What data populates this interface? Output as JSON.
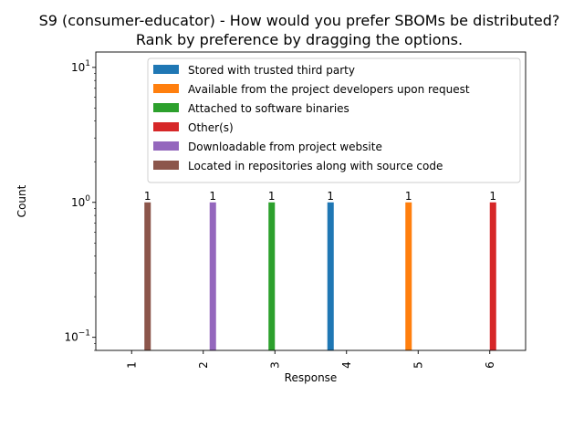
{
  "chart_data": {
    "type": "bar",
    "title": "S9 (consumer-educator) - How would you prefer SBOMs be distributed?\nRank by preference by dragging the options.",
    "xlabel": "Response",
    "ylabel": "Count",
    "yscale": "log",
    "ylim": [
      0.08,
      13
    ],
    "yticks": [
      {
        "value": 0.1,
        "base": "10",
        "exp": "−1"
      },
      {
        "value": 1,
        "base": "10",
        "exp": "0"
      },
      {
        "value": 10,
        "base": "10",
        "exp": "1"
      }
    ],
    "categories": [
      "1",
      "2",
      "3",
      "4",
      "5",
      "6"
    ],
    "legend_position": "top-right",
    "grid": false,
    "series": [
      {
        "name": "Stored with trusted third party",
        "color": "#1f77b4",
        "values": [
          0,
          0,
          0,
          1,
          0,
          0
        ]
      },
      {
        "name": "Available from the project developers upon request",
        "color": "#ff7f0e",
        "values": [
          0,
          0,
          0,
          0,
          1,
          0
        ]
      },
      {
        "name": "Attached to software binaries",
        "color": "#2ca02c",
        "values": [
          0,
          0,
          1,
          0,
          0,
          0
        ]
      },
      {
        "name": "Other(s)",
        "color": "#d62728",
        "values": [
          0,
          0,
          0,
          0,
          0,
          1
        ]
      },
      {
        "name": "Downloadable from project website",
        "color": "#9467bd",
        "values": [
          0,
          1,
          0,
          0,
          0,
          0
        ]
      },
      {
        "name": "Located in repositories along with source code",
        "color": "#8c564b",
        "values": [
          1,
          0,
          0,
          0,
          0,
          0
        ]
      }
    ],
    "data_labels": [
      "1",
      "1",
      "1",
      "1",
      "1",
      "1"
    ]
  }
}
